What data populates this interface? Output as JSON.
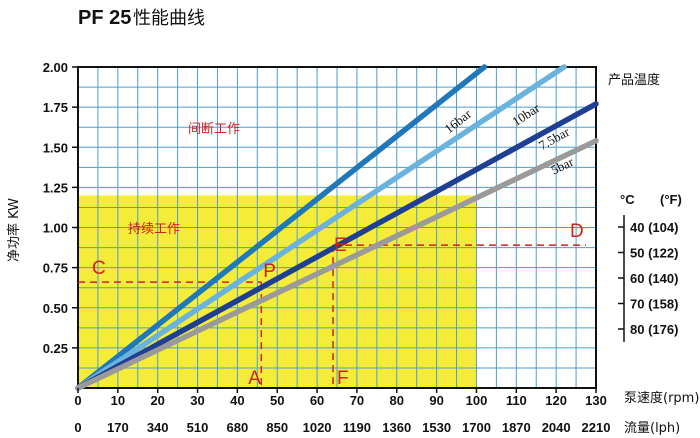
{
  "title_model": "PF 25",
  "title_text": "性能曲线",
  "chart_data": {
    "type": "line",
    "xlabel": "泵速度(rpm)",
    "x2label": "流量(lph)",
    "ylabel": "净功率 KW",
    "xlim": [
      0,
      130
    ],
    "ylim": [
      0,
      2.0
    ],
    "x_ticks": [
      "0",
      "10",
      "20",
      "30",
      "40",
      "50",
      "60",
      "70",
      "80",
      "90",
      "100",
      "110",
      "120",
      "130"
    ],
    "x2_ticks": [
      "0",
      "170",
      "340",
      "510",
      "680",
      "850",
      "1020",
      "1190",
      "1360",
      "1530",
      "1700",
      "1870",
      "2040",
      "2210"
    ],
    "y_ticks": [
      "0.25",
      "0.50",
      "0.75",
      "1.00",
      "1.25",
      "1.50",
      "1.75",
      "2.00"
    ],
    "grid": true,
    "series": [
      {
        "name": "16bar",
        "x": [
          0,
          102
        ],
        "y": [
          0,
          2.0
        ],
        "color": "#1f78b9"
      },
      {
        "name": "10bar",
        "x": [
          0,
          122
        ],
        "y": [
          0,
          2.0
        ],
        "color": "#6ab3df"
      },
      {
        "name": "7.5bar",
        "x": [
          0,
          130
        ],
        "y": [
          0,
          1.77
        ],
        "color": "#1e3f93"
      },
      {
        "name": "5bar",
        "x": [
          0,
          130
        ],
        "y": [
          0,
          1.54
        ],
        "color": "#9a9a9a"
      }
    ],
    "continuous_zone": {
      "label": "持续工作",
      "x": [
        0,
        100
      ],
      "y": [
        0,
        1.2
      ],
      "color": "#f5ec3a"
    },
    "intermittent_zone": {
      "label": "间断工作"
    },
    "markers": [
      {
        "label": "A",
        "x": 46
      },
      {
        "label": "P",
        "x": 46,
        "y": 0.66
      },
      {
        "label": "C",
        "y": 0.66
      },
      {
        "label": "E",
        "x": 64,
        "y": 0.89
      },
      {
        "label": "F",
        "x": 64
      },
      {
        "label": "D",
        "y": 0.89
      }
    ],
    "temperature_scale": {
      "title": "产品温度",
      "unit_c": "°C",
      "unit_f": "(°F)",
      "items": [
        "40 (104)",
        "50 (122)",
        "60 (140)",
        "70 (158)",
        "80 (176)"
      ]
    }
  }
}
